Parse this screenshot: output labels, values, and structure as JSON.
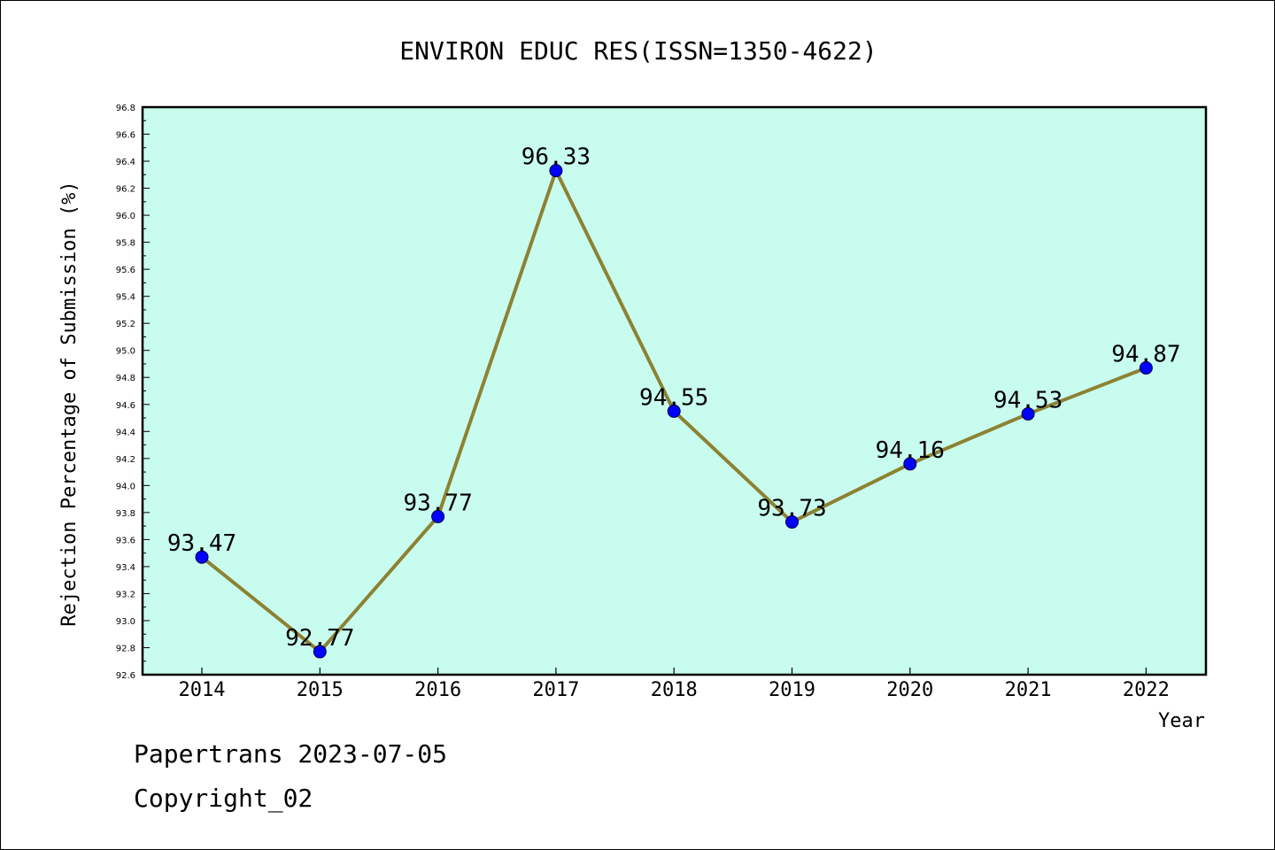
{
  "chart_data": {
    "type": "line",
    "title": "ENVIRON EDUC RES(ISSN=1350-4622)",
    "xlabel": "Year",
    "ylabel": "Rejection Percentage of Submission (%)",
    "categories": [
      "2014",
      "2015",
      "2016",
      "2017",
      "2018",
      "2019",
      "2020",
      "2021",
      "2022"
    ],
    "values": [
      93.47,
      92.77,
      93.77,
      96.33,
      94.55,
      93.73,
      94.16,
      94.53,
      94.87
    ],
    "data_labels": [
      "93.47",
      "92.77",
      "93.77",
      "96.33",
      "94.55",
      "93.73",
      "94.16",
      "94.53",
      "94.87"
    ],
    "ylim": [
      92.6,
      96.8
    ],
    "y_ticks": [
      "92.6",
      "92.8",
      "93.0",
      "93.2",
      "93.4",
      "93.6",
      "93.8",
      "94.0",
      "94.2",
      "94.4",
      "94.6",
      "94.8",
      "95.0",
      "95.2",
      "95.4",
      "95.6",
      "95.8",
      "96.0",
      "96.2",
      "96.4",
      "96.6",
      "96.8"
    ],
    "grid": false,
    "colors": {
      "plot_background": "#c8fcee",
      "line": "#8c8232",
      "marker": "#0000ff"
    }
  },
  "footer": {
    "line1": "Papertrans 2023-07-05",
    "line2": "Copyright_02"
  }
}
